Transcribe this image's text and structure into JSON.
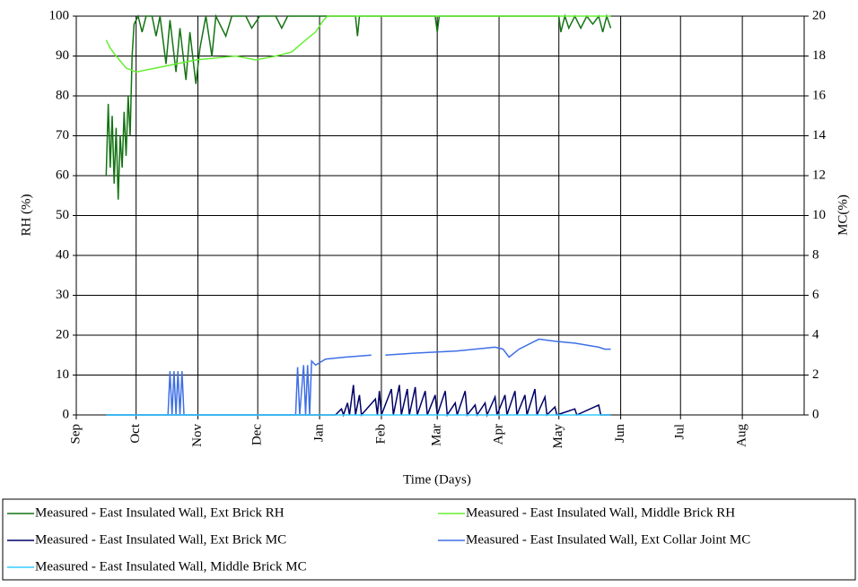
{
  "chart_data": {
    "type": "line",
    "y_label": "RH (%)",
    "y2_label": "MC(%)",
    "x_label": "Time (Days)",
    "xlim": [
      0,
      365
    ],
    "xticks": [
      {
        "value": 0,
        "label": "Sep"
      },
      {
        "value": 30,
        "label": "Oct"
      },
      {
        "value": 61,
        "label": "Nov"
      },
      {
        "value": 91,
        "label": "Dec"
      },
      {
        "value": 122,
        "label": "Jan"
      },
      {
        "value": 153,
        "label": "Feb"
      },
      {
        "value": 181,
        "label": "Mar"
      },
      {
        "value": 212,
        "label": "Apr"
      },
      {
        "value": 242,
        "label": "May"
      },
      {
        "value": 273,
        "label": "Jun"
      },
      {
        "value": 303,
        "label": "Jul"
      },
      {
        "value": 334,
        "label": "Aug"
      }
    ],
    "ylim": [
      0,
      100
    ],
    "yticks": [
      0,
      10,
      20,
      30,
      40,
      50,
      60,
      70,
      80,
      90,
      100
    ],
    "y2lim": [
      0,
      20
    ],
    "y2ticks": [
      0,
      2,
      4,
      6,
      8,
      10,
      12,
      14,
      16,
      18,
      20
    ],
    "grid": true,
    "legend": "bottom",
    "series": [
      {
        "name": "Measured - East Insulated Wall, Ext Brick RH",
        "color": "#147314",
        "axis": "y",
        "x": [
          15,
          16,
          17,
          18,
          19,
          20,
          21,
          22,
          23,
          24,
          25,
          26,
          27,
          28,
          29,
          31,
          33,
          35,
          38,
          40,
          42,
          45,
          47,
          50,
          52,
          55,
          57,
          60,
          62,
          65,
          68,
          70,
          75,
          78,
          85,
          88,
          92,
          100,
          103,
          106,
          140,
          141,
          142,
          180,
          181,
          182,
          242,
          243,
          245,
          247,
          250,
          253,
          256,
          259,
          262,
          264,
          266,
          268
        ],
        "values": [
          60,
          78,
          62,
          75,
          58,
          72,
          54,
          70,
          62,
          76,
          65,
          80,
          70,
          90,
          98,
          100,
          96,
          100,
          100,
          95,
          100,
          88,
          99,
          86,
          97,
          84,
          96,
          83,
          92,
          100,
          90,
          100,
          95,
          100,
          100,
          97,
          100,
          100,
          97,
          100,
          100,
          95,
          100,
          100,
          96,
          100,
          100,
          96,
          100,
          97,
          100,
          97,
          100,
          98,
          100,
          96,
          100,
          97
        ]
      },
      {
        "name": "Measured - East Insulated Wall, Middle Brick RH",
        "color": "#66ee33",
        "axis": "y",
        "x": [
          15,
          17,
          20,
          25,
          30,
          40,
          50,
          60,
          70,
          80,
          90,
          100,
          108,
          115,
          120,
          124,
          126,
          268
        ],
        "values": [
          94,
          92,
          90,
          87,
          86,
          87,
          88,
          89,
          89.5,
          90,
          89,
          90,
          91,
          94,
          96,
          99,
          100,
          100
        ]
      },
      {
        "name": "Measured - East Insulated Wall, Ext Brick MC",
        "color": "#000066",
        "axis": "y2",
        "x": [
          15,
          130,
          133,
          134,
          136,
          137,
          139,
          140,
          142,
          143,
          150,
          151,
          152,
          153,
          158,
          159,
          162,
          163,
          166,
          167,
          170,
          171,
          175,
          176,
          180,
          181,
          185,
          186,
          190,
          191,
          195,
          196,
          200,
          201,
          205,
          206,
          210,
          211,
          215,
          216,
          220,
          221,
          225,
          226,
          230,
          231,
          235,
          236,
          240,
          241,
          250,
          251,
          262,
          263,
          268
        ],
        "values": [
          0,
          0,
          0.3,
          0,
          0.6,
          0,
          1.5,
          0,
          1,
          0,
          0.8,
          0,
          1.2,
          0,
          1.3,
          0,
          1.5,
          0,
          1.3,
          0,
          1.4,
          0,
          1.2,
          0,
          1,
          0,
          1.2,
          0,
          0.6,
          0,
          1.2,
          0,
          0.5,
          0,
          0.6,
          0,
          0.9,
          0,
          1,
          0,
          1.2,
          0,
          1,
          0,
          1.3,
          0,
          0.9,
          0,
          0.4,
          0,
          0.3,
          0,
          0.5,
          0,
          0
        ]
      },
      {
        "name": "Measured - East Insulated Wall, Ext Collar Joint MC",
        "color": "#3f6fe6",
        "axis": "y2",
        "x": [
          15,
          46,
          47,
          48,
          49,
          50,
          51,
          52,
          53,
          54,
          110,
          111,
          112,
          114,
          115,
          116,
          117,
          118,
          120,
          125,
          135,
          148,
          152,
          155,
          170,
          190,
          210,
          214,
          217,
          222,
          232,
          240,
          250,
          262,
          265,
          268
        ],
        "values": [
          0,
          0,
          2.2,
          0,
          2.2,
          0,
          2.2,
          0,
          2.2,
          0,
          0,
          2.4,
          0,
          2.5,
          0,
          2.5,
          0,
          2.7,
          2.5,
          2.8,
          2.9,
          3.0,
          null,
          3.0,
          3.1,
          3.2,
          3.4,
          3.3,
          2.9,
          3.3,
          3.8,
          3.7,
          3.6,
          3.4,
          3.3,
          3.3
        ]
      },
      {
        "name": "Measured - East Insulated Wall, Middle Brick MC",
        "color": "#33ccff",
        "axis": "y2",
        "x": [
          15,
          268
        ],
        "values": [
          0,
          0
        ]
      }
    ]
  }
}
